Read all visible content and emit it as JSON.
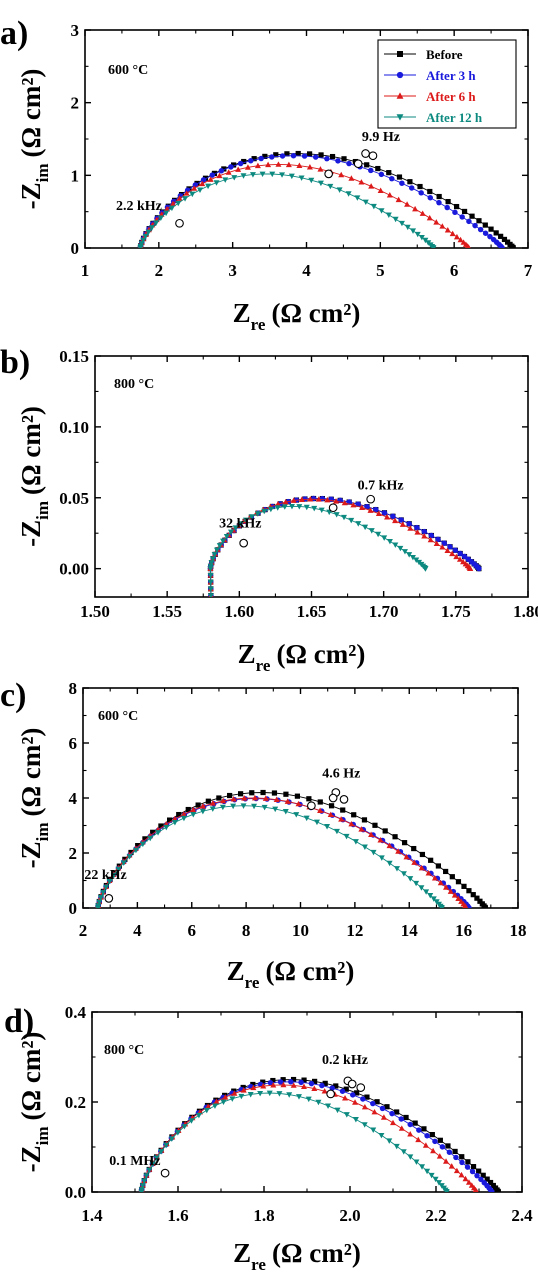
{
  "legend": {
    "entries": [
      "Before",
      "After 3 h",
      "After 6 h",
      "After 12 h"
    ]
  },
  "chart_data": [
    {
      "panel": "a)",
      "type": "scatter",
      "temperature": "600 °C",
      "xlabel_main": "Z",
      "xlabel_sub": "re",
      "xlabel_unit": "(Ω cm²)",
      "ylabel_main": "-Z",
      "ylabel_sub": "im",
      "ylabel_unit": "(Ω cm²)",
      "xlim": [
        1,
        7
      ],
      "ylim": [
        0,
        3
      ],
      "xticks": [
        1,
        2,
        3,
        4,
        5,
        6,
        7
      ],
      "xtick_labels": [
        "1",
        "2",
        "3",
        "4",
        "5",
        "6",
        "7"
      ],
      "yticks": [
        0,
        1,
        2,
        3
      ],
      "ytick_labels": [
        "0",
        "1",
        "2",
        "3"
      ],
      "annotations": [
        {
          "text": "9.9 Hz",
          "x": 4.75,
          "y": 1.47
        },
        {
          "text": "2.2 kHz",
          "x": 1.42,
          "y": 0.52
        }
      ],
      "legend_position": "top-right",
      "series": [
        {
          "name": "Before",
          "color": "#000000",
          "marker": "square",
          "r0": 1.75,
          "r1": 6.8,
          "peak": 1.3,
          "skew": 0.22,
          "n": 52
        },
        {
          "name": "After 3 h",
          "color": "#1a1adc",
          "marker": "circle",
          "r0": 1.75,
          "r1": 6.65,
          "peak": 1.27,
          "skew": 0.22,
          "n": 52
        },
        {
          "name": "After 6 h",
          "color": "#dc1a1a",
          "marker": "triangle-up",
          "r0": 1.75,
          "r1": 6.2,
          "peak": 1.15,
          "skew": 0.22,
          "n": 50
        },
        {
          "name": "After 12 h",
          "color": "#0d8a80",
          "marker": "triangle-down",
          "r0": 1.75,
          "r1": 5.72,
          "peak": 1.02,
          "skew": 0.2,
          "n": 48
        }
      ],
      "open_markers": [
        {
          "x": 4.8,
          "y": 1.3
        },
        {
          "x": 4.9,
          "y": 1.27
        },
        {
          "x": 4.7,
          "y": 1.16
        },
        {
          "x": 4.3,
          "y": 1.02
        },
        {
          "x": 2.28,
          "y": 0.34
        }
      ]
    },
    {
      "panel": "b)",
      "type": "scatter",
      "temperature": "800 °C",
      "xlabel_main": "Z",
      "xlabel_sub": "re",
      "xlabel_unit": "(Ω cm²)",
      "ylabel_main": "-Z",
      "ylabel_sub": "im",
      "ylabel_unit": "(Ω cm²)",
      "xlim": [
        1.5,
        1.8
      ],
      "ylim": [
        -0.02,
        0.15
      ],
      "xticks": [
        1.5,
        1.55,
        1.6,
        1.65,
        1.7,
        1.75,
        1.8
      ],
      "xtick_labels": [
        "1.50",
        "1.55",
        "1.60",
        "1.65",
        "1.70",
        "1.75",
        "1.80"
      ],
      "yticks": [
        0,
        0.05,
        0.1,
        0.15
      ],
      "ytick_labels": [
        "0.00",
        "0.05",
        "0.10",
        "0.15"
      ],
      "annotations": [
        {
          "text": "0.7 kHz",
          "x": 1.682,
          "y": 0.056
        },
        {
          "text": "32 kHz",
          "x": 1.586,
          "y": 0.029
        }
      ],
      "series": [
        {
          "name": "Before",
          "color": "#000000",
          "marker": "square",
          "r0": 1.58,
          "r1": 1.766,
          "peak": 0.0495,
          "skew": 0.28,
          "n": 48,
          "tail": -0.019
        },
        {
          "name": "After 3 h",
          "color": "#1a1adc",
          "marker": "circle",
          "r0": 1.58,
          "r1": 1.766,
          "peak": 0.0495,
          "skew": 0.28,
          "n": 48,
          "tail": -0.019
        },
        {
          "name": "After 6 h",
          "color": "#dc1a1a",
          "marker": "triangle-up",
          "r0": 1.58,
          "r1": 1.76,
          "peak": 0.049,
          "skew": 0.29,
          "n": 48,
          "tail": -0.019
        },
        {
          "name": "After 12 h",
          "color": "#0d8a80",
          "marker": "triangle-down",
          "r0": 1.58,
          "r1": 1.729,
          "peak": 0.044,
          "skew": 0.3,
          "n": 46,
          "tail": -0.019
        }
      ],
      "open_markers": [
        {
          "x": 1.691,
          "y": 0.049
        },
        {
          "x": 1.665,
          "y": 0.043
        },
        {
          "x": 1.603,
          "y": 0.018
        }
      ]
    },
    {
      "panel": "c)",
      "type": "scatter",
      "temperature": "600 °C",
      "xlabel_main": "Z",
      "xlabel_sub": "re",
      "xlabel_unit": "(Ω cm²)",
      "ylabel_main": "-Z",
      "ylabel_sub": "im",
      "ylabel_unit": "(Ω cm²)",
      "xlim": [
        2,
        18
      ],
      "ylim": [
        0,
        8
      ],
      "xticks": [
        2,
        4,
        6,
        8,
        10,
        12,
        14,
        16,
        18
      ],
      "xtick_labels": [
        "2",
        "4",
        "6",
        "8",
        "10",
        "12",
        "14",
        "16",
        "18"
      ],
      "yticks": [
        0,
        2,
        4,
        6,
        8
      ],
      "ytick_labels": [
        "0",
        "2",
        "4",
        "6",
        "8"
      ],
      "annotations": [
        {
          "text": "4.6 Hz",
          "x": 10.8,
          "y": 4.75
        },
        {
          "text": "22 kHz",
          "x": 2.05,
          "y": 1.05
        }
      ],
      "series": [
        {
          "name": "Before",
          "color": "#000000",
          "marker": "square",
          "r0": 2.55,
          "r1": 16.8,
          "peak": 4.2,
          "skew": 0.22,
          "n": 54
        },
        {
          "name": "After 3 h",
          "color": "#1a1adc",
          "marker": "circle",
          "r0": 2.55,
          "r1": 16.2,
          "peak": 3.98,
          "skew": 0.22,
          "n": 54
        },
        {
          "name": "After 6 h",
          "color": "#dc1a1a",
          "marker": "triangle-up",
          "r0": 2.55,
          "r1": 16.1,
          "peak": 4.0,
          "skew": 0.22,
          "n": 54
        },
        {
          "name": "After 12 h",
          "color": "#0d8a80",
          "marker": "triangle-down",
          "r0": 2.55,
          "r1": 15.2,
          "peak": 3.72,
          "skew": 0.22,
          "n": 52
        }
      ],
      "open_markers": [
        {
          "x": 11.3,
          "y": 4.2
        },
        {
          "x": 11.2,
          "y": 4.0
        },
        {
          "x": 11.6,
          "y": 3.95
        },
        {
          "x": 10.4,
          "y": 3.72
        },
        {
          "x": 2.95,
          "y": 0.35
        }
      ]
    },
    {
      "panel": "d)",
      "type": "scatter",
      "temperature": "800 °C",
      "xlabel_main": "Z",
      "xlabel_sub": "re",
      "xlabel_unit": "(Ω cm²)",
      "ylabel_main": "-Z",
      "ylabel_sub": "im",
      "ylabel_unit": "(Ω cm²)",
      "xlim": [
        1.4,
        2.4
      ],
      "ylim": [
        0,
        0.4
      ],
      "xticks": [
        1.4,
        1.6,
        1.8,
        2.0,
        2.2,
        2.4
      ],
      "xtick_labels": [
        "1.4",
        "1.6",
        "1.8",
        "2.0",
        "2.2",
        "2.4"
      ],
      "yticks": [
        0,
        0.2,
        0.4
      ],
      "ytick_labels": [
        "0.0",
        "0.2",
        "0.4"
      ],
      "annotations": [
        {
          "text": "0.2 kHz",
          "x": 1.935,
          "y": 0.285
        },
        {
          "text": "0.1 MHz",
          "x": 1.44,
          "y": 0.06
        }
      ],
      "series": [
        {
          "name": "Before",
          "color": "#000000",
          "marker": "square",
          "r0": 1.515,
          "r1": 2.345,
          "peak": 0.25,
          "skew": 0.23,
          "n": 54
        },
        {
          "name": "After 3 h",
          "color": "#1a1adc",
          "marker": "circle",
          "r0": 1.515,
          "r1": 2.33,
          "peak": 0.245,
          "skew": 0.23,
          "n": 54
        },
        {
          "name": "After 6 h",
          "color": "#dc1a1a",
          "marker": "triangle-up",
          "r0": 1.515,
          "r1": 2.295,
          "peak": 0.238,
          "skew": 0.23,
          "n": 52
        },
        {
          "name": "After 12 h",
          "color": "#0d8a80",
          "marker": "triangle-down",
          "r0": 1.515,
          "r1": 2.225,
          "peak": 0.22,
          "skew": 0.23,
          "n": 50
        }
      ],
      "open_markers": [
        {
          "x": 1.995,
          "y": 0.247
        },
        {
          "x": 2.005,
          "y": 0.24
        },
        {
          "x": 2.025,
          "y": 0.232
        },
        {
          "x": 1.955,
          "y": 0.218
        },
        {
          "x": 1.57,
          "y": 0.042
        }
      ]
    }
  ]
}
